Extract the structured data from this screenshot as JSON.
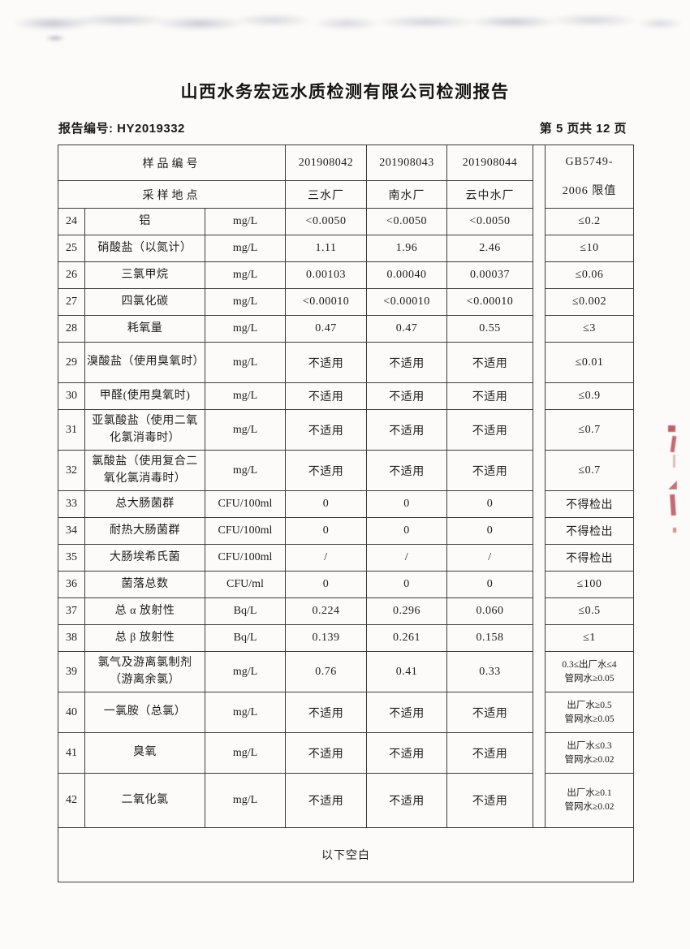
{
  "page": {
    "title": "山西水务宏远水质检测有限公司检测报告",
    "report_no": "报告编号: HY2019332",
    "page_indicator": "第 5 页共 12 页"
  },
  "table": {
    "header": {
      "sample_id_label": "样品编号",
      "sample_ids": [
        "201908042",
        "201908043",
        "201908044"
      ],
      "location_label": "采样地点",
      "locations": [
        "三水厂",
        "南水厂",
        "云中水厂"
      ],
      "limit_header_lines": [
        "GB5749-",
        "2006 限值"
      ]
    },
    "rows": [
      {
        "no": "24",
        "name": "铝",
        "unit": "mg/L",
        "values": [
          "<0.0050",
          "<0.0050",
          "<0.0050"
        ],
        "limit": [
          "≤0.2"
        ]
      },
      {
        "no": "25",
        "name": "硝酸盐（以氮计）",
        "unit": "mg/L",
        "values": [
          "1.11",
          "1.96",
          "2.46"
        ],
        "limit": [
          "≤10"
        ]
      },
      {
        "no": "26",
        "name": "三氯甲烷",
        "unit": "mg/L",
        "values": [
          "0.00103",
          "0.00040",
          "0.00037"
        ],
        "limit": [
          "≤0.06"
        ]
      },
      {
        "no": "27",
        "name": "四氯化碳",
        "unit": "mg/L",
        "values": [
          "<0.00010",
          "<0.00010",
          "<0.00010"
        ],
        "limit": [
          "≤0.002"
        ]
      },
      {
        "no": "28",
        "name": "耗氧量",
        "unit": "mg/L",
        "values": [
          "0.47",
          "0.47",
          "0.55"
        ],
        "limit": [
          "≤3"
        ]
      },
      {
        "no": "29",
        "name": "溴酸盐（使用臭氧时）",
        "unit": "mg/L",
        "values": [
          "不适用",
          "不适用",
          "不适用"
        ],
        "limit": [
          "≤0.01"
        ],
        "tall": true
      },
      {
        "no": "30",
        "name": "甲醛(使用臭氧时)",
        "unit": "mg/L",
        "values": [
          "不适用",
          "不适用",
          "不适用"
        ],
        "limit": [
          "≤0.9"
        ]
      },
      {
        "no": "31",
        "name": "亚氯酸盐（使用二氧化氯消毒时）",
        "unit": "mg/L",
        "values": [
          "不适用",
          "不适用",
          "不适用"
        ],
        "limit": [
          "≤0.7"
        ],
        "tall": true
      },
      {
        "no": "32",
        "name": "氯酸盐（使用复合二氧化氯消毒时）",
        "unit": "mg/L",
        "values": [
          "不适用",
          "不适用",
          "不适用"
        ],
        "limit": [
          "≤0.7"
        ],
        "tall": true
      },
      {
        "no": "33",
        "name": "总大肠菌群",
        "unit": "CFU/100ml",
        "values": [
          "0",
          "0",
          "0"
        ],
        "limit": [
          "不得检出"
        ]
      },
      {
        "no": "34",
        "name": "耐热大肠菌群",
        "unit": "CFU/100ml",
        "values": [
          "0",
          "0",
          "0"
        ],
        "limit": [
          "不得检出"
        ]
      },
      {
        "no": "35",
        "name": "大肠埃希氏菌",
        "unit": "CFU/100ml",
        "values": [
          "/",
          "/",
          "/"
        ],
        "limit": [
          "不得检出"
        ]
      },
      {
        "no": "36",
        "name": "菌落总数",
        "unit": "CFU/ml",
        "values": [
          "0",
          "0",
          "0"
        ],
        "limit": [
          "≤100"
        ]
      },
      {
        "no": "37",
        "name": "总 α 放射性",
        "unit": "Bq/L",
        "values": [
          "0.224",
          "0.296",
          "0.060"
        ],
        "limit": [
          "≤0.5"
        ]
      },
      {
        "no": "38",
        "name": "总 β 放射性",
        "unit": "Bq/L",
        "values": [
          "0.139",
          "0.261",
          "0.158"
        ],
        "limit": [
          "≤1"
        ]
      },
      {
        "no": "39",
        "name": "氯气及游离氯制剂（游离余氯）",
        "unit": "mg/L",
        "values": [
          "0.76",
          "0.41",
          "0.33"
        ],
        "limit": [
          "0.3≤出厂水≤4",
          "管网水≥0.05"
        ],
        "tall": true
      },
      {
        "no": "40",
        "name": "一氯胺（总氯）",
        "unit": "mg/L",
        "values": [
          "不适用",
          "不适用",
          "不适用"
        ],
        "limit": [
          "出厂水≥0.5",
          "管网水≥0.05"
        ],
        "tall": true
      },
      {
        "no": "41",
        "name": "臭氧",
        "unit": "mg/L",
        "values": [
          "不适用",
          "不适用",
          "不适用"
        ],
        "limit": [
          "出厂水≤0.3",
          "管网水≥0.02"
        ],
        "tall": true
      },
      {
        "no": "42",
        "name": "二氧化氯",
        "unit": "mg/L",
        "values": [
          "不适用",
          "不适用",
          "不适用"
        ],
        "limit": [
          "出厂水≥0.1",
          "管网水≥0.02"
        ],
        "xtall": true
      }
    ],
    "footer_note": "以下空白"
  },
  "artifacts": {
    "stamp_color": "#b64552",
    "smudge_color": "#8585a0"
  }
}
